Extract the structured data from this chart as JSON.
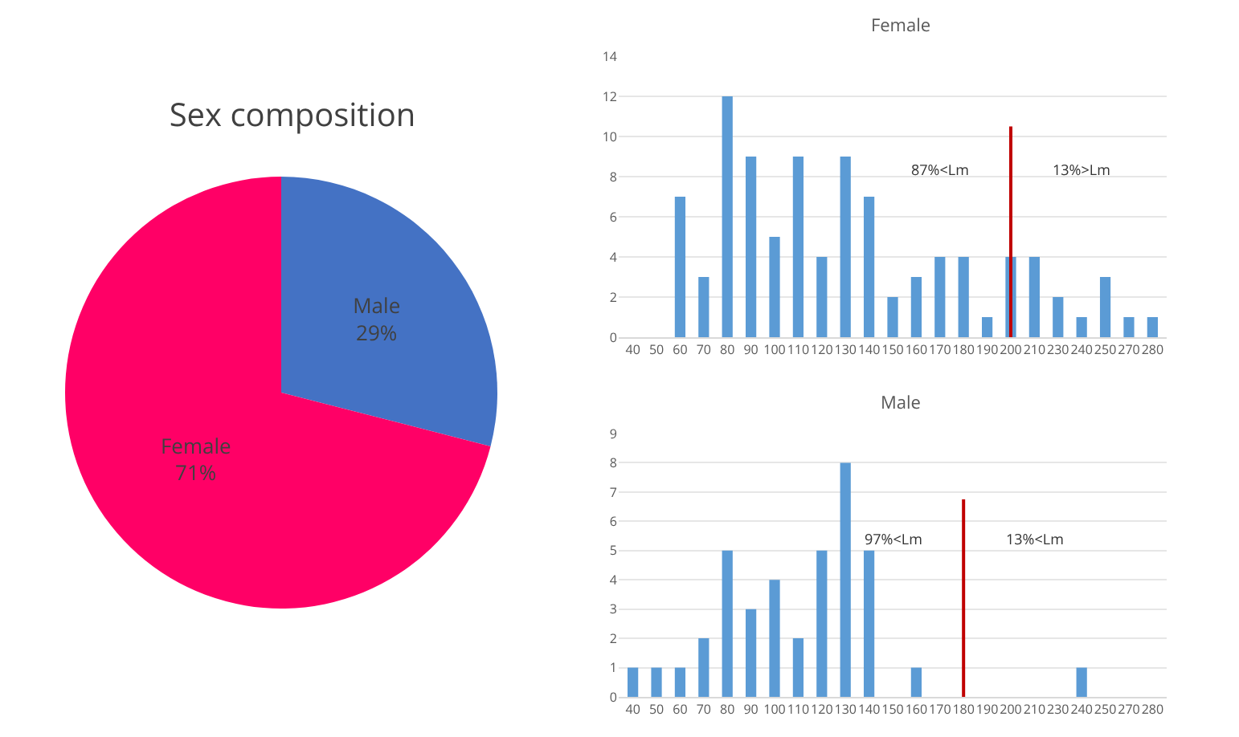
{
  "chart_data": [
    {
      "type": "pie",
      "title": "Sex composition",
      "categories": [
        "Male",
        "Female"
      ],
      "values": [
        29,
        71
      ],
      "colors": [
        "#4472c4",
        "#ff0066"
      ],
      "value_labels": [
        "29%",
        "71%"
      ],
      "legend": false
    },
    {
      "type": "bar",
      "title": "Female",
      "categories": [
        "40",
        "50",
        "60",
        "70",
        "80",
        "90",
        "100",
        "110",
        "120",
        "130",
        "140",
        "150",
        "160",
        "170",
        "180",
        "190",
        "200",
        "210",
        "230",
        "240",
        "250",
        "270",
        "280"
      ],
      "series": [
        {
          "color": "#5b9bd5",
          "values": [
            0,
            0,
            7,
            3,
            12,
            9,
            5,
            9,
            4,
            9,
            7,
            2,
            3,
            4,
            4,
            1,
            4,
            4,
            2,
            1,
            3,
            1,
            1
          ]
        }
      ],
      "ylim": [
        0,
        14
      ],
      "yticks": [
        0,
        2,
        4,
        6,
        8,
        10,
        12,
        14
      ],
      "grid": "y",
      "legend": false,
      "ref_lines": [
        {
          "axis": "x",
          "value": "200",
          "color": "#c00000"
        }
      ],
      "annotations": [
        "87%<Lm",
        "13%>Lm"
      ]
    },
    {
      "type": "bar",
      "title": "Male",
      "categories": [
        "40",
        "50",
        "60",
        "70",
        "80",
        "90",
        "100",
        "110",
        "120",
        "130",
        "140",
        "150",
        "160",
        "170",
        "180",
        "190",
        "200",
        "210",
        "230",
        "240",
        "250",
        "270",
        "280"
      ],
      "series": [
        {
          "color": "#5b9bd5",
          "values": [
            1,
            1,
            1,
            2,
            5,
            3,
            4,
            2,
            5,
            8,
            5,
            0,
            1,
            0,
            0,
            0,
            0,
            0,
            0,
            1,
            0,
            0,
            0
          ]
        }
      ],
      "ylim": [
        0,
        9
      ],
      "yticks": [
        0,
        1,
        2,
        3,
        4,
        5,
        6,
        7,
        8,
        9
      ],
      "grid": "y",
      "legend": false,
      "ref_lines": [
        {
          "axis": "x",
          "value": "180",
          "color": "#c00000"
        }
      ],
      "annotations": [
        "97%<Lm",
        "13%<Lm"
      ]
    }
  ]
}
